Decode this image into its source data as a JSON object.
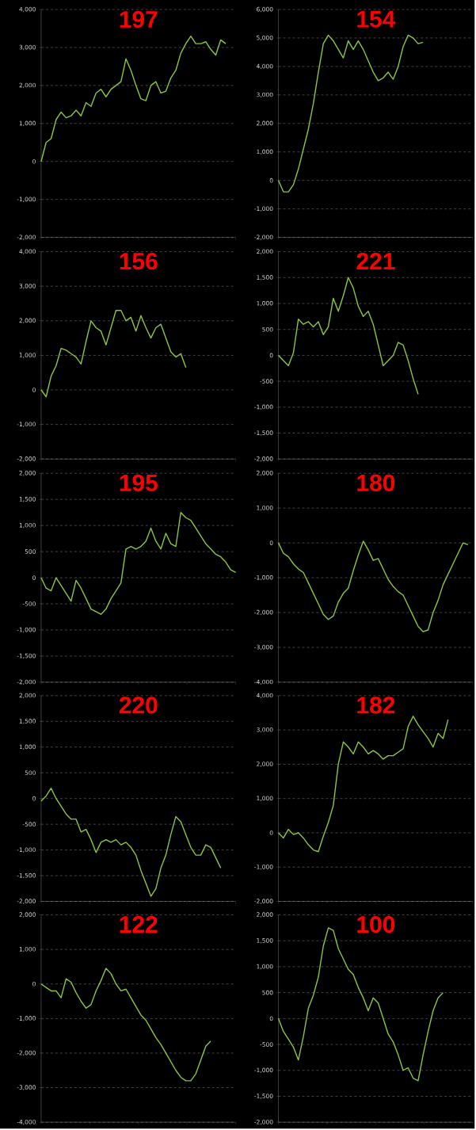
{
  "chart_data": [
    {
      "type": "line",
      "title": "197",
      "color": "#8cc63f",
      "grid": "y",
      "ylim": [
        -2000,
        4000
      ],
      "yticks": [
        {
          "value": -2000,
          "label": "-2,000"
        },
        {
          "value": -1000,
          "label": "-1,000"
        },
        0,
        {
          "value": 1000,
          "label": "1,000"
        },
        {
          "value": 2000,
          "label": "2,000"
        },
        {
          "value": 3000,
          "label": "3,000"
        },
        {
          "value": 4000,
          "label": "4,000"
        }
      ],
      "categories": [
        null,
        null,
        null,
        null,
        null,
        null,
        null,
        null,
        null,
        null,
        null,
        null,
        null,
        null,
        null,
        null,
        null,
        null,
        null,
        null,
        null,
        null,
        null,
        null,
        null,
        null,
        null,
        null,
        null,
        null,
        null,
        null,
        null,
        null,
        null,
        null,
        null,
        null,
        null,
        null
      ],
      "values": [
        0,
        500,
        600,
        1100,
        1300,
        1150,
        1200,
        1350,
        1200,
        1550,
        1450,
        1800,
        1900,
        1700,
        1900,
        2000,
        2100,
        2700,
        2400,
        2000,
        1650,
        1600,
        2000,
        2100,
        1800,
        1850,
        2200,
        2400,
        2850,
        3100,
        3300,
        3100,
        3100,
        3150,
        2950,
        2800,
        3200,
        3100,
        null,
        null
      ]
    },
    {
      "type": "line",
      "title": "154",
      "color": "#8cc63f",
      "grid": "y",
      "ylim": [
        -2000,
        6000
      ],
      "yticks": [
        {
          "value": -2000,
          "label": "-2,000"
        },
        {
          "value": -1000,
          "label": "-1,000"
        },
        0,
        {
          "value": 1000,
          "label": "1,000"
        },
        {
          "value": 2000,
          "label": "2,000"
        },
        {
          "value": 3000,
          "label": "3,000"
        },
        {
          "value": 4000,
          "label": "4,000"
        },
        {
          "value": 5000,
          "label": "5,000"
        },
        {
          "value": 6000,
          "label": "6,000"
        }
      ],
      "categories": [
        null,
        null,
        null,
        null,
        null,
        null,
        null,
        null,
        null,
        null,
        null,
        null,
        null,
        null,
        null,
        null,
        null,
        null,
        null,
        null,
        null,
        null,
        null,
        null,
        null,
        null,
        null,
        null,
        null,
        null,
        null,
        null,
        null,
        null,
        null,
        null,
        null,
        null,
        null,
        null
      ],
      "values": [
        0,
        -400,
        -400,
        -150,
        400,
        1100,
        1800,
        2700,
        3800,
        4800,
        5100,
        4900,
        4600,
        4300,
        4900,
        4600,
        4900,
        4600,
        4200,
        3800,
        3500,
        3600,
        3800,
        3550,
        4000,
        4700,
        5100,
        5000,
        4800,
        4850,
        null,
        null,
        null,
        null,
        null,
        null,
        null,
        null,
        null,
        null
      ]
    },
    {
      "type": "line",
      "title": "156",
      "color": "#8cc63f",
      "grid": "y",
      "ylim": [
        -2000,
        4000
      ],
      "yticks": [
        {
          "value": -2000,
          "label": "-2,000"
        },
        {
          "value": -1000,
          "label": "-1,000"
        },
        0,
        {
          "value": 1000,
          "label": "1,000"
        },
        {
          "value": 2000,
          "label": "2,000"
        },
        {
          "value": 3000,
          "label": "3,000"
        },
        {
          "value": 4000,
          "label": "4,000"
        }
      ],
      "categories": [
        null,
        null,
        null,
        null,
        null,
        null,
        null,
        null,
        null,
        null,
        null,
        null,
        null,
        null,
        null,
        null,
        null,
        null,
        null,
        null,
        null,
        null,
        null,
        null,
        null,
        null,
        null,
        null,
        null,
        null,
        null,
        null,
        null,
        null,
        null,
        null,
        null,
        null,
        null,
        null
      ],
      "values": [
        0,
        -200,
        400,
        700,
        1200,
        1150,
        1050,
        950,
        750,
        1400,
        2000,
        1800,
        1700,
        1300,
        1800,
        2300,
        2300,
        2000,
        2100,
        1700,
        2150,
        1800,
        1500,
        1800,
        1900,
        1500,
        1100,
        950,
        1050,
        650,
        null,
        null,
        null,
        null,
        null,
        null,
        null,
        null,
        null,
        null
      ]
    },
    {
      "type": "line",
      "title": "221",
      "color": "#8cc63f",
      "grid": "y",
      "ylim": [
        -2000,
        2000
      ],
      "yticks": [
        {
          "value": -2000,
          "label": "-2,000"
        },
        {
          "value": -1500,
          "label": "-1,500"
        },
        {
          "value": -1000,
          "label": "-1,000"
        },
        -500,
        0,
        500,
        {
          "value": 1000,
          "label": "1,000"
        },
        {
          "value": 1500,
          "label": "1,500"
        },
        {
          "value": 2000,
          "label": "2,000"
        }
      ],
      "categories": [
        null,
        null,
        null,
        null,
        null,
        null,
        null,
        null,
        null,
        null,
        null,
        null,
        null,
        null,
        null,
        null,
        null,
        null,
        null,
        null,
        null,
        null,
        null,
        null,
        null,
        null,
        null,
        null,
        null,
        null,
        null,
        null,
        null,
        null,
        null,
        null,
        null,
        null,
        null,
        null
      ],
      "values": [
        0,
        -100,
        -200,
        50,
        700,
        600,
        650,
        550,
        650,
        400,
        550,
        1100,
        850,
        1150,
        1500,
        1300,
        950,
        750,
        850,
        600,
        200,
        -200,
        -100,
        0,
        250,
        200,
        -100,
        -450,
        -750,
        null,
        null,
        null,
        null,
        null,
        null,
        null,
        null,
        null,
        null,
        null
      ]
    },
    {
      "type": "line",
      "title": "195",
      "color": "#8cc63f",
      "grid": "y",
      "ylim": [
        -2000,
        2000
      ],
      "yticks": [
        {
          "value": -2000,
          "label": "-2,000"
        },
        {
          "value": -1500,
          "label": "-1,500"
        },
        {
          "value": -1000,
          "label": "-1,000"
        },
        -500,
        0,
        500,
        {
          "value": 1000,
          "label": "1,000"
        },
        {
          "value": 1500,
          "label": "1,500"
        },
        {
          "value": 2000,
          "label": "2,000"
        }
      ],
      "categories": [
        null,
        null,
        null,
        null,
        null,
        null,
        null,
        null,
        null,
        null,
        null,
        null,
        null,
        null,
        null,
        null,
        null,
        null,
        null,
        null,
        null,
        null,
        null,
        null,
        null,
        null,
        null,
        null,
        null,
        null,
        null,
        null,
        null,
        null,
        null,
        null,
        null,
        null,
        null,
        null
      ],
      "values": [
        0,
        -200,
        -250,
        0,
        -150,
        -300,
        -450,
        -50,
        -200,
        -400,
        -600,
        -650,
        -700,
        -600,
        -400,
        -250,
        -100,
        550,
        600,
        550,
        600,
        700,
        950,
        700,
        550,
        850,
        650,
        600,
        1250,
        1150,
        1100,
        950,
        800,
        650,
        550,
        450,
        400,
        300,
        150,
        100
      ]
    },
    {
      "type": "line",
      "title": "180",
      "color": "#8cc63f",
      "grid": "y",
      "ylim": [
        -4000,
        2000
      ],
      "yticks": [
        {
          "value": -4000,
          "label": "-4,000"
        },
        {
          "value": -3000,
          "label": "-3,000"
        },
        {
          "value": -2000,
          "label": "-2,000"
        },
        {
          "value": -1000,
          "label": "-1,000"
        },
        0,
        {
          "value": 1000,
          "label": "1,000"
        },
        {
          "value": 2000,
          "label": "2,000"
        }
      ],
      "categories": [
        null,
        null,
        null,
        null,
        null,
        null,
        null,
        null,
        null,
        null,
        null,
        null,
        null,
        null,
        null,
        null,
        null,
        null,
        null,
        null,
        null,
        null,
        null,
        null,
        null,
        null,
        null,
        null,
        null,
        null,
        null,
        null,
        null,
        null,
        null,
        null,
        null,
        null,
        null,
        null
      ],
      "values": [
        0,
        -300,
        -400,
        -600,
        -750,
        -850,
        -1150,
        -1450,
        -1750,
        -2050,
        -2200,
        -2100,
        -1700,
        -1450,
        -1300,
        -800,
        -350,
        50,
        -200,
        -500,
        -450,
        -750,
        -1050,
        -1250,
        -1400,
        -1500,
        -1800,
        -2100,
        -2400,
        -2550,
        -2500,
        -2000,
        -1650,
        -1200,
        -900,
        -600,
        -300,
        0,
        -50,
        null
      ]
    },
    {
      "type": "line",
      "title": "220",
      "color": "#8cc63f",
      "grid": "y",
      "ylim": [
        -2000,
        2000
      ],
      "yticks": [
        {
          "value": -2000,
          "label": "-2,000"
        },
        {
          "value": -1500,
          "label": "-1,500"
        },
        {
          "value": -1000,
          "label": "-1,000"
        },
        -500,
        0,
        500,
        {
          "value": 1000,
          "label": "1,000"
        },
        {
          "value": 1500,
          "label": "1,500"
        },
        {
          "value": 2000,
          "label": "2,000"
        }
      ],
      "categories": [
        null,
        null,
        null,
        null,
        null,
        null,
        null,
        null,
        null,
        null,
        null,
        null,
        null,
        null,
        null,
        null,
        null,
        null,
        null,
        null,
        null,
        null,
        null,
        null,
        null,
        null,
        null,
        null,
        null,
        null,
        null,
        null,
        null,
        null,
        null,
        null,
        null,
        null,
        null,
        null
      ],
      "values": [
        -50,
        50,
        200,
        0,
        -150,
        -300,
        -400,
        -400,
        -650,
        -600,
        -800,
        -1050,
        -850,
        -800,
        -850,
        -800,
        -900,
        -850,
        -950,
        -1100,
        -1400,
        -1650,
        -1900,
        -1750,
        -1350,
        -1100,
        -700,
        -350,
        -450,
        -700,
        -950,
        -1100,
        -1100,
        -900,
        -950,
        -1150,
        -1350,
        null,
        null,
        null
      ]
    },
    {
      "type": "line",
      "title": "182",
      "color": "#8cc63f",
      "grid": "y",
      "ylim": [
        -2000,
        4000
      ],
      "yticks": [
        {
          "value": -2000,
          "label": "-2,000"
        },
        {
          "value": -1000,
          "label": "-1,000"
        },
        0,
        {
          "value": 1000,
          "label": "1,000"
        },
        {
          "value": 2000,
          "label": "2,000"
        },
        {
          "value": 3000,
          "label": "3,000"
        },
        {
          "value": 4000,
          "label": "4,000"
        }
      ],
      "categories": [
        null,
        null,
        null,
        null,
        null,
        null,
        null,
        null,
        null,
        null,
        null,
        null,
        null,
        null,
        null,
        null,
        null,
        null,
        null,
        null,
        null,
        null,
        null,
        null,
        null,
        null,
        null,
        null,
        null,
        null,
        null,
        null,
        null,
        null,
        null,
        null,
        null,
        null,
        null,
        null
      ],
      "values": [
        0,
        -150,
        100,
        -50,
        0,
        -150,
        -350,
        -500,
        -550,
        -100,
        300,
        800,
        2000,
        2650,
        2500,
        2300,
        2650,
        2500,
        2300,
        2400,
        2300,
        2150,
        2250,
        2250,
        2350,
        2450,
        3100,
        3400,
        3150,
        2950,
        2750,
        2500,
        2900,
        2750,
        3300,
        null,
        null,
        null,
        null,
        null
      ]
    },
    {
      "type": "line",
      "title": "122",
      "color": "#8cc63f",
      "grid": "y",
      "ylim": [
        -4000,
        2000
      ],
      "yticks": [
        {
          "value": -4000,
          "label": "-4,000"
        },
        {
          "value": -3000,
          "label": "-3,000"
        },
        {
          "value": -2000,
          "label": "-2,000"
        },
        {
          "value": -1000,
          "label": "-1,000"
        },
        0,
        {
          "value": 1000,
          "label": "1,000"
        },
        {
          "value": 2000,
          "label": "2,000"
        }
      ],
      "categories": [
        null,
        null,
        null,
        null,
        null,
        null,
        null,
        null,
        null,
        null,
        null,
        null,
        null,
        null,
        null,
        null,
        null,
        null,
        null,
        null,
        null,
        null,
        null,
        null,
        null,
        null,
        null,
        null,
        null,
        null,
        null,
        null,
        null,
        null,
        null,
        null,
        null,
        null,
        null,
        null
      ],
      "values": [
        0,
        -100,
        -200,
        -200,
        -400,
        150,
        50,
        -250,
        -500,
        -700,
        -600,
        -200,
        100,
        450,
        300,
        0,
        -200,
        -150,
        -400,
        -650,
        -900,
        -1050,
        -1300,
        -1550,
        -1750,
        -2000,
        -2250,
        -2500,
        -2700,
        -2800,
        -2800,
        -2600,
        -2200,
        -1800,
        -1650,
        null,
        null,
        null,
        null,
        null
      ]
    },
    {
      "type": "line",
      "title": "100",
      "color": "#8cc63f",
      "grid": "y",
      "ylim": [
        -2000,
        2000
      ],
      "yticks": [
        {
          "value": -2000,
          "label": "-2,000"
        },
        {
          "value": -1500,
          "label": "-1,500"
        },
        {
          "value": -1000,
          "label": "-1,000"
        },
        -500,
        0,
        500,
        {
          "value": 1000,
          "label": "1,000"
        },
        {
          "value": 1500,
          "label": "1,500"
        },
        {
          "value": 2000,
          "label": "2,000"
        }
      ],
      "categories": [
        null,
        null,
        null,
        null,
        null,
        null,
        null,
        null,
        null,
        null,
        null,
        null,
        null,
        null,
        null,
        null,
        null,
        null,
        null,
        null,
        null,
        null,
        null,
        null,
        null,
        null,
        null,
        null,
        null,
        null,
        null,
        null,
        null,
        null,
        null,
        null,
        null,
        null,
        null,
        null
      ],
      "values": [
        0,
        -250,
        -400,
        -550,
        -800,
        -350,
        200,
        450,
        800,
        1400,
        1750,
        1700,
        1350,
        1150,
        950,
        850,
        600,
        400,
        150,
        400,
        300,
        0,
        -300,
        -450,
        -700,
        -1000,
        -950,
        -1150,
        -1200,
        -700,
        -250,
        150,
        400,
        500,
        null,
        null,
        null,
        null,
        null,
        null
      ]
    }
  ]
}
